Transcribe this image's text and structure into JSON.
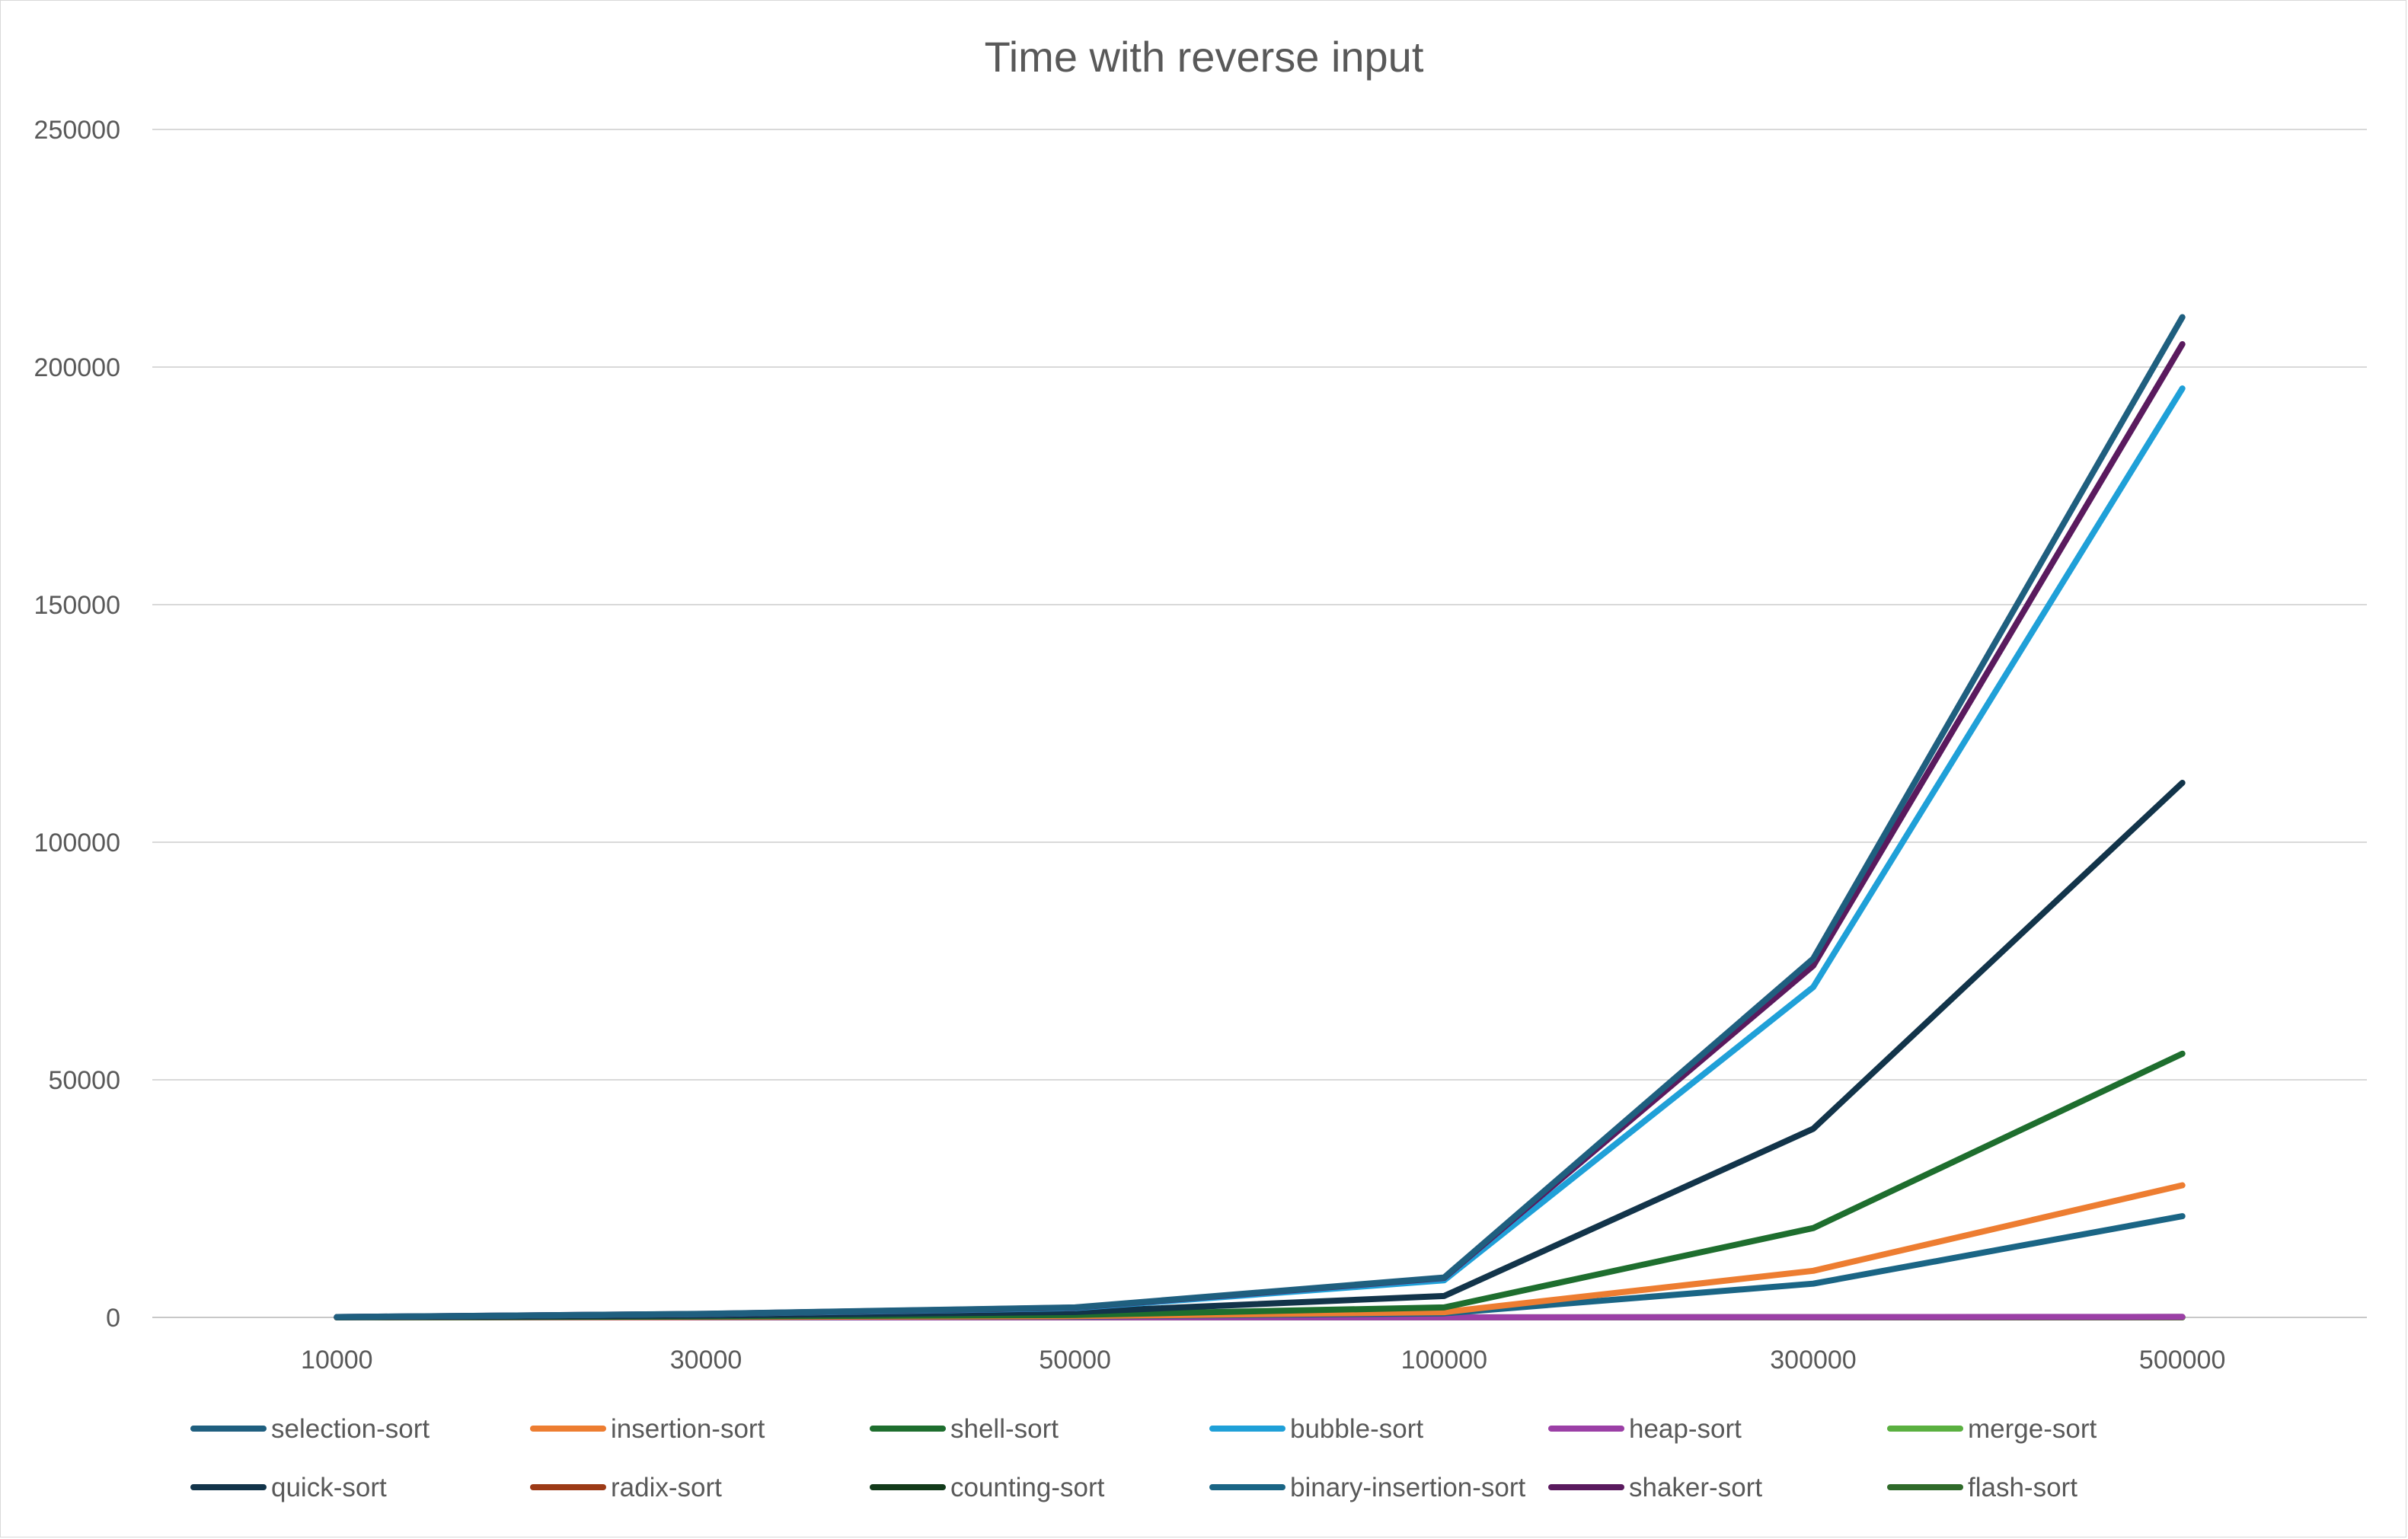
{
  "chart_data": {
    "type": "line",
    "title": "Time with reverse input",
    "xlabel": "",
    "ylabel": "",
    "categories": [
      "10000",
      "30000",
      "50000",
      "100000",
      "300000",
      "500000"
    ],
    "ylim": [
      0,
      250000
    ],
    "yticks": [
      0,
      50000,
      100000,
      150000,
      200000,
      250000
    ],
    "ytick_labels": [
      "0",
      "50000",
      "100000",
      "150000",
      "200000",
      "250000"
    ],
    "grid": "horizontal",
    "legend_position": "bottom",
    "series": [
      {
        "name": "selection-sort",
        "color": "#1f5f7f",
        "values": [
          84,
          760,
          2100,
          8400,
          75500,
          210500
        ]
      },
      {
        "name": "insertion-sort",
        "color": "#ed7d31",
        "values": [
          11,
          100,
          280,
          1100,
          9800,
          27800
        ]
      },
      {
        "name": "shell-sort",
        "color": "#1e6e2e",
        "values": [
          18,
          190,
          520,
          2100,
          18800,
          55500
        ]
      },
      {
        "name": "bubble-sort",
        "color": "#1fa0d8",
        "values": [
          78,
          700,
          1950,
          7800,
          69500,
          195500
        ]
      },
      {
        "name": "heap-sort",
        "color": "#9b3fa6",
        "values": [
          2,
          6,
          10,
          22,
          70,
          120
        ]
      },
      {
        "name": "merge-sort",
        "color": "#5ab040",
        "values": [
          2,
          5,
          9,
          18,
          55,
          95
        ]
      },
      {
        "name": "quick-sort",
        "color": "#12344a",
        "values": [
          45,
          400,
          1130,
          4500,
          39700,
          112500
        ]
      },
      {
        "name": "radix-sort",
        "color": "#9c3a16",
        "values": [
          1,
          2,
          3,
          6,
          18,
          30
        ]
      },
      {
        "name": "counting-sort",
        "color": "#123a1a",
        "values": [
          0,
          1,
          1,
          2,
          6,
          10
        ]
      },
      {
        "name": "binary-insertion-sort",
        "color": "#1a6585",
        "values": [
          8,
          75,
          210,
          850,
          7100,
          21300
        ]
      },
      {
        "name": "shaker-sort",
        "color": "#5a1a5e",
        "values": [
          82,
          740,
          2050,
          8300,
          74000,
          204800
        ]
      },
      {
        "name": "flash-sort",
        "color": "#2f6a2a",
        "values": [
          1,
          2,
          3,
          5,
          15,
          25
        ]
      }
    ]
  }
}
